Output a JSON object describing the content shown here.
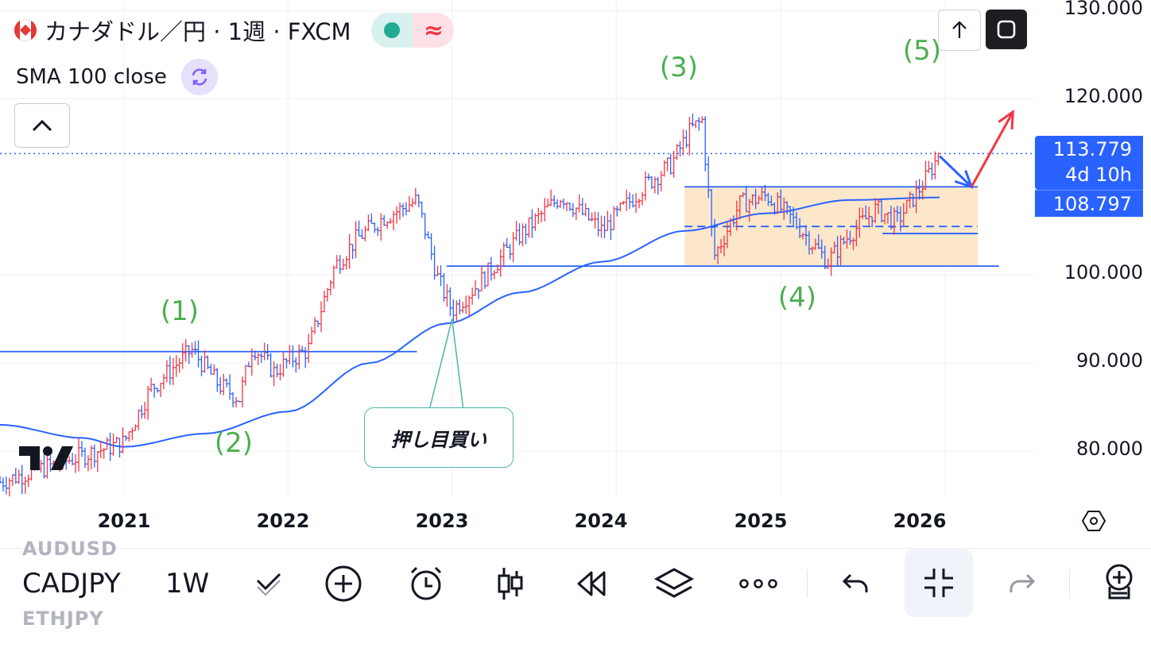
{
  "legend": {
    "title": "カナダドル／円 · 1週 · FXCM",
    "indicator": "SMA 100 close"
  },
  "icons": {
    "flag": "canada-flag-icon",
    "market_status": "market-open-dot-icon",
    "delayed": "approx-wave-icon",
    "indicator": "refresh-icon",
    "collapse": "chevron-up-icon",
    "share": "arrow-up-icon",
    "fullscreen": "fullscreen-icon"
  },
  "price_axis": {
    "labels": [
      "130.000",
      "120.000",
      "100.000",
      "90.000",
      "80.000"
    ],
    "current_price": "113.779",
    "countdown": "4d 10h",
    "sma_value": "108.797"
  },
  "time_axis": {
    "years": [
      "2021",
      "2022",
      "2023",
      "2024",
      "2025",
      "2026"
    ]
  },
  "annotations": {
    "waves": [
      "(1)",
      "(2)",
      "(3)",
      "(4)",
      "(5)"
    ],
    "callout": "押し目買い"
  },
  "colors": {
    "up": "#f23645",
    "down": "#2962ff",
    "sma": "#2962ff",
    "wave_label": "#4caf50",
    "range_box": "#fde3c2",
    "accent": "#2962ff"
  },
  "chart_data": {
    "type": "candlestick",
    "title": "カナダドル／円 · 1週 · FXCM",
    "xlabel": "",
    "ylabel": "",
    "ylim": [
      74.7,
      131.2
    ],
    "x_range": [
      "2020-04-01",
      "2026-07-20"
    ],
    "y_ticks": [
      130,
      120,
      100,
      90,
      80
    ],
    "grid": true,
    "price_path": [
      [
        "2020-04-01",
        76.5
      ],
      [
        "2020-08-01",
        78.5
      ],
      [
        "2020-11-01",
        80.0
      ],
      [
        "2021-01-01",
        81.0
      ],
      [
        "2021-03-01",
        87.0
      ],
      [
        "2021-06-01",
        91.5
      ],
      [
        "2021-08-01",
        87.5
      ],
      [
        "2021-09-15",
        86.0
      ],
      [
        "2021-10-15",
        92.0
      ],
      [
        "2021-12-01",
        89.0
      ],
      [
        "2022-01-10",
        90.5
      ],
      [
        "2022-02-15",
        91.5
      ],
      [
        "2022-04-15",
        101.0
      ],
      [
        "2022-06-01",
        104.0
      ],
      [
        "2022-08-01",
        106.5
      ],
      [
        "2022-09-10",
        107.5
      ],
      [
        "2022-10-15",
        108.5
      ],
      [
        "2022-12-01",
        99.5
      ],
      [
        "2023-01-01",
        96.0
      ],
      [
        "2023-03-01",
        99.0
      ],
      [
        "2023-06-01",
        104.5
      ],
      [
        "2023-09-01",
        109.0
      ],
      [
        "2023-12-01",
        105.0
      ],
      [
        "2024-03-01",
        110.0
      ],
      [
        "2024-05-01",
        112.5
      ],
      [
        "2024-06-15",
        116.5
      ],
      [
        "2024-07-10",
        117.5
      ],
      [
        "2024-08-05",
        102.0
      ],
      [
        "2024-10-01",
        108.0
      ],
      [
        "2024-12-01",
        109.0
      ],
      [
        "2025-02-01",
        106.0
      ],
      [
        "2025-04-15",
        101.5
      ],
      [
        "2025-06-01",
        104.5
      ],
      [
        "2025-08-01",
        107.5
      ],
      [
        "2025-09-15",
        106.0
      ],
      [
        "2025-11-15",
        110.5
      ],
      [
        "2025-12-20",
        113.779
      ]
    ],
    "sma_path": [
      [
        "2020-04-01",
        83.0
      ],
      [
        "2020-10-01",
        81.5
      ],
      [
        "2021-01-01",
        80.5
      ],
      [
        "2021-07-01",
        82.0
      ],
      [
        "2022-01-01",
        84.5
      ],
      [
        "2022-07-01",
        90.0
      ],
      [
        "2022-12-20",
        94.5
      ],
      [
        "2023-06-01",
        98.0
      ],
      [
        "2023-12-01",
        101.5
      ],
      [
        "2024-06-01",
        105.0
      ],
      [
        "2024-12-01",
        107.0
      ],
      [
        "2025-06-01",
        108.5
      ],
      [
        "2025-12-20",
        108.797
      ]
    ],
    "horizontal_levels": [
      {
        "y": 91.3,
        "x_start": "2020-04-01",
        "x_end": "2022-10-15",
        "style": "solid"
      },
      {
        "y": 101.0,
        "x_start": "2022-12-20",
        "x_end": "2026-05-01",
        "style": "solid"
      },
      {
        "y": 104.7,
        "x_start": "2025-08-15",
        "x_end": "2026-03-15",
        "style": "solid"
      },
      {
        "y": 110.0,
        "x_start": "2024-06-01",
        "x_end": "2026-03-15",
        "style": "solid"
      },
      {
        "y": 105.5,
        "x_start": "2024-06-01",
        "x_end": "2026-03-15",
        "style": "dashed"
      }
    ],
    "range_box": {
      "x_start": "2024-06-01",
      "x_end": "2026-03-15",
      "y_low": 101.0,
      "y_high": 110.0
    },
    "current_price_line": 113.779,
    "wave_labels": [
      {
        "label": "(1)",
        "x": "2021-04-15",
        "y": 94.0
      },
      {
        "label": "(2)",
        "x": "2021-08-15",
        "y": 78.5
      },
      {
        "label": "(3)",
        "x": "2024-05-15",
        "y": 121.5
      },
      {
        "label": "(4)",
        "x": "2025-03-01",
        "y": 96.8
      },
      {
        "label": "(5)",
        "x": "2025-12-20",
        "y": 123.7
      }
    ],
    "callout_anchor": {
      "x": "2023-01-01",
      "y": 95.0
    },
    "arrows": [
      {
        "color": "#2962ff",
        "from": {
          "x": "2025-12-20",
          "y": 113.5
        },
        "to": {
          "x": "2026-03-01",
          "y": 110.0
        }
      },
      {
        "color": "#f23645",
        "from": {
          "x": "2026-03-01",
          "y": 110.0
        },
        "to": {
          "x": "2026-06-01",
          "y": 118.5
        }
      }
    ]
  },
  "toolbar": {
    "symbol": "CADJPY",
    "interval": "1W",
    "watchlist_above": "AUDUSD",
    "watchlist_below": "ETHJPY",
    "icons": [
      "drawing-tools-icon",
      "add-indicator-icon",
      "alert-clock-icon",
      "candles-icon",
      "replay-icon",
      "layers-icon",
      "more-dots-icon",
      "undo-icon",
      "exit-fullscreen-icon",
      "redo-icon",
      "add-account-icon"
    ]
  }
}
